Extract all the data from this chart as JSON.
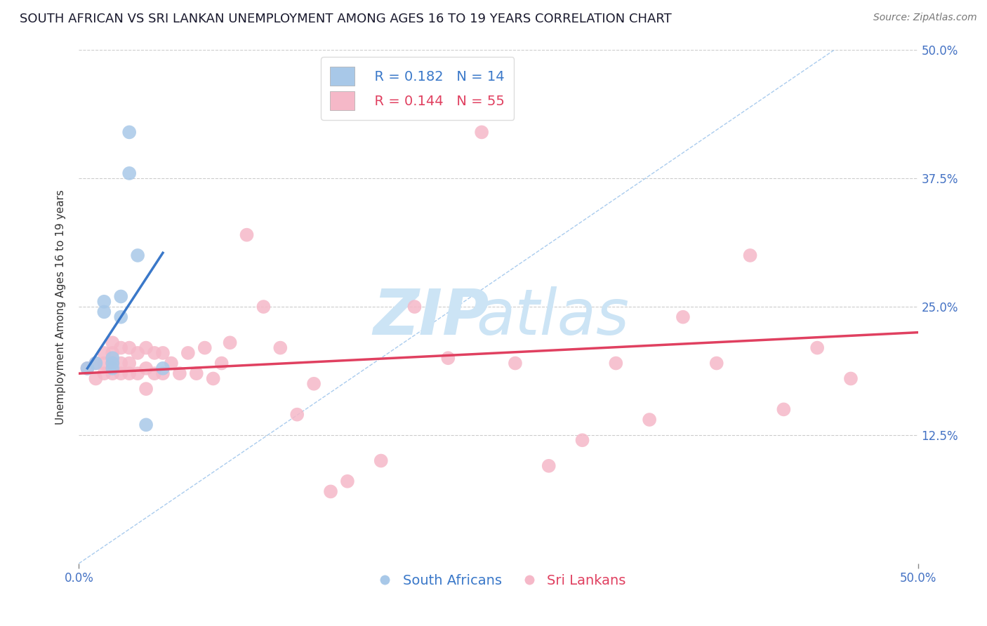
{
  "title": "SOUTH AFRICAN VS SRI LANKAN UNEMPLOYMENT AMONG AGES 16 TO 19 YEARS CORRELATION CHART",
  "source": "Source: ZipAtlas.com",
  "ylabel": "Unemployment Among Ages 16 to 19 years",
  "watermark_zip": "ZIP",
  "watermark_atlas": "atlas",
  "xlim": [
    0.0,
    0.5
  ],
  "ylim": [
    0.0,
    0.5
  ],
  "xtick_vals": [
    0.0,
    0.5
  ],
  "xtick_labels": [
    "0.0%",
    "50.0%"
  ],
  "ytick_vals": [
    0.125,
    0.25,
    0.375,
    0.5
  ],
  "ytick_labels": [
    "12.5%",
    "25.0%",
    "37.5%",
    "50.0%"
  ],
  "south_african_color": "#a8c8e8",
  "sri_lankan_color": "#f5b8c8",
  "south_african_line_color": "#3a78c9",
  "sri_lankan_line_color": "#e04060",
  "diag_color": "#aaccee",
  "legend_r_sa": "R = 0.182",
  "legend_n_sa": "N = 14",
  "legend_r_sl": "R = 0.144",
  "legend_n_sl": "N = 55",
  "sa_x": [
    0.005,
    0.01,
    0.015,
    0.015,
    0.02,
    0.02,
    0.02,
    0.025,
    0.025,
    0.03,
    0.03,
    0.035,
    0.04,
    0.05
  ],
  "sa_y": [
    0.19,
    0.195,
    0.245,
    0.255,
    0.19,
    0.195,
    0.2,
    0.24,
    0.26,
    0.38,
    0.42,
    0.3,
    0.135,
    0.19
  ],
  "sl_x": [
    0.005,
    0.01,
    0.01,
    0.015,
    0.015,
    0.015,
    0.02,
    0.02,
    0.02,
    0.02,
    0.025,
    0.025,
    0.025,
    0.03,
    0.03,
    0.03,
    0.035,
    0.035,
    0.04,
    0.04,
    0.04,
    0.045,
    0.045,
    0.05,
    0.05,
    0.055,
    0.06,
    0.065,
    0.07,
    0.075,
    0.08,
    0.085,
    0.09,
    0.1,
    0.11,
    0.12,
    0.13,
    0.14,
    0.15,
    0.16,
    0.18,
    0.2,
    0.22,
    0.24,
    0.26,
    0.28,
    0.3,
    0.32,
    0.34,
    0.36,
    0.38,
    0.4,
    0.42,
    0.44,
    0.46
  ],
  "sl_y": [
    0.19,
    0.18,
    0.195,
    0.185,
    0.195,
    0.205,
    0.185,
    0.195,
    0.205,
    0.215,
    0.185,
    0.195,
    0.21,
    0.185,
    0.195,
    0.21,
    0.185,
    0.205,
    0.17,
    0.19,
    0.21,
    0.185,
    0.205,
    0.185,
    0.205,
    0.195,
    0.185,
    0.205,
    0.185,
    0.21,
    0.18,
    0.195,
    0.215,
    0.32,
    0.25,
    0.21,
    0.145,
    0.175,
    0.07,
    0.08,
    0.1,
    0.25,
    0.2,
    0.42,
    0.195,
    0.095,
    0.12,
    0.195,
    0.14,
    0.24,
    0.195,
    0.3,
    0.15,
    0.21,
    0.18
  ],
  "title_fontsize": 13,
  "axis_label_fontsize": 11,
  "tick_fontsize": 12,
  "legend_fontsize": 14,
  "watermark_fontsize_zip": 65,
  "watermark_fontsize_atlas": 65,
  "watermark_color": "#cce4f5",
  "grid_color": "#cccccc",
  "background_color": "#ffffff",
  "title_color": "#1a1a2e",
  "tick_color": "#4472c4",
  "source_fontsize": 10,
  "sa_trend_x": [
    0.005,
    0.05
  ],
  "sa_trend_y_intercept": 0.19,
  "sa_trend_slope": 2.5,
  "sl_trend_x": [
    0.0,
    0.5
  ],
  "sl_trend_y_start": 0.185,
  "sl_trend_y_end": 0.225
}
